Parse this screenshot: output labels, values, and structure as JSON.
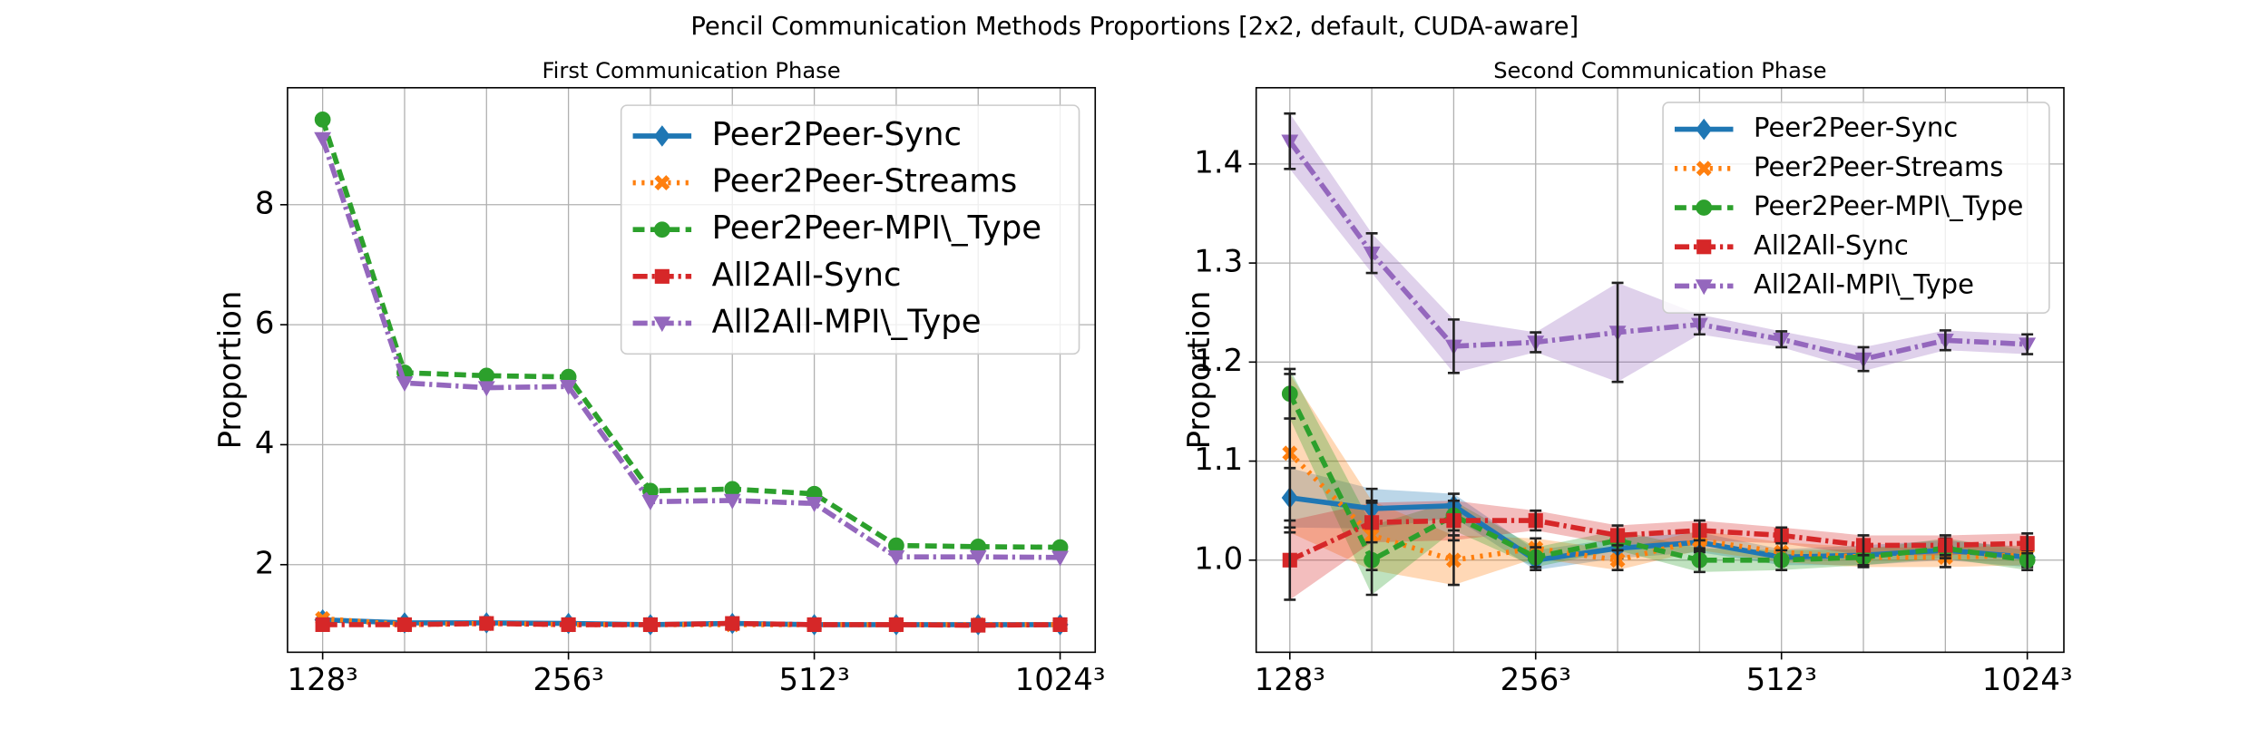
{
  "title": "Pencil Communication Methods Proportions [2x2, default, CUDA-aware]",
  "chart_data": [
    {
      "type": "line",
      "title": "First Communication Phase",
      "ylabel": "Proportion",
      "categories": [
        "128³",
        null,
        null,
        "256³",
        null,
        null,
        "512³",
        null,
        null,
        "1024³"
      ],
      "ylim": [
        0.54,
        9.95
      ],
      "yticks": [
        2,
        4,
        6,
        8
      ],
      "grid": true,
      "legend": "upper right",
      "series": [
        {
          "name": "Peer2Peer-Sync",
          "color": "#1f77b4",
          "values": [
            1.08,
            1.03,
            1.03,
            1.02,
            1.0,
            1.02,
            1.0,
            1.0,
            1.0,
            1.0
          ]
        },
        {
          "name": "Peer2Peer-Streams",
          "color": "#ff7f0e",
          "values": [
            1.1,
            1.0,
            1.02,
            1.0,
            1.0,
            1.0,
            1.0,
            1.0,
            1.0,
            1.0
          ]
        },
        {
          "name": "Peer2Peer-MPI\\_Type",
          "color": "#2ca02c",
          "values": [
            9.42,
            5.2,
            5.15,
            5.13,
            3.23,
            3.26,
            3.18,
            2.32,
            2.3,
            2.29
          ]
        },
        {
          "name": "All2All-Sync",
          "color": "#d62728",
          "values": [
            1.0,
            1.0,
            1.02,
            1.0,
            1.0,
            1.02,
            1.0,
            1.0,
            0.99,
            1.0
          ]
        },
        {
          "name": "All2All-MPI\\_Type",
          "color": "#9467bd",
          "values": [
            9.1,
            5.03,
            4.95,
            4.97,
            3.05,
            3.07,
            3.02,
            2.13,
            2.13,
            2.12
          ]
        }
      ]
    },
    {
      "type": "line",
      "title": "Second Communication Phase",
      "ylabel": "Proportion",
      "categories": [
        "128³",
        null,
        null,
        "256³",
        null,
        null,
        "512³",
        null,
        null,
        "1024³"
      ],
      "ylim": [
        0.907,
        1.477
      ],
      "yticks": [
        {
          "value": 1,
          "label": "1.0"
        },
        1.1,
        1.2,
        1.3,
        1.4
      ],
      "grid": true,
      "legend": "upper right",
      "series": [
        {
          "name": "Peer2Peer-Sync",
          "color": "#1f77b4",
          "values": [
            1.063,
            1.052,
            1.055,
            1.0,
            1.012,
            1.018,
            1.003,
            1.005,
            1.01,
            1.003
          ],
          "errors": [
            0.03,
            0.02,
            0.012,
            0.01,
            0.01,
            0.01,
            0.008,
            0.01,
            0.01,
            0.01
          ]
        },
        {
          "name": "Peer2Peer-Streams",
          "color": "#ff7f0e",
          "values": [
            1.108,
            1.025,
            1.0,
            1.012,
            1.0,
            1.02,
            1.008,
            1.003,
            1.003,
            1.005
          ],
          "errors": [
            0.08,
            0.035,
            0.025,
            0.01,
            0.01,
            0.01,
            0.01,
            0.01,
            0.01,
            0.01
          ]
        },
        {
          "name": "Peer2Peer-MPI\\_Type",
          "color": "#2ca02c",
          "values": [
            1.168,
            1.0,
            1.045,
            1.003,
            1.02,
            1.0,
            1.0,
            1.003,
            1.012,
            1.0
          ],
          "errors": [
            0.025,
            0.035,
            0.015,
            0.01,
            0.01,
            0.012,
            0.01,
            0.008,
            0.01,
            0.01
          ]
        },
        {
          "name": "All2All-Sync",
          "color": "#d62728",
          "values": [
            1.0,
            1.038,
            1.04,
            1.04,
            1.025,
            1.03,
            1.025,
            1.015,
            1.015,
            1.017
          ],
          "errors": [
            0.04,
            0.02,
            0.02,
            0.01,
            0.01,
            0.01,
            0.008,
            0.01,
            0.01,
            0.01
          ]
        },
        {
          "name": "All2All-MPI\\_Type",
          "color": "#9467bd",
          "values": [
            1.423,
            1.31,
            1.216,
            1.22,
            1.23,
            1.238,
            1.223,
            1.203,
            1.222,
            1.218
          ],
          "errors": [
            0.028,
            0.02,
            0.027,
            0.01,
            0.05,
            0.01,
            0.008,
            0.012,
            0.01,
            0.01
          ]
        }
      ]
    }
  ]
}
